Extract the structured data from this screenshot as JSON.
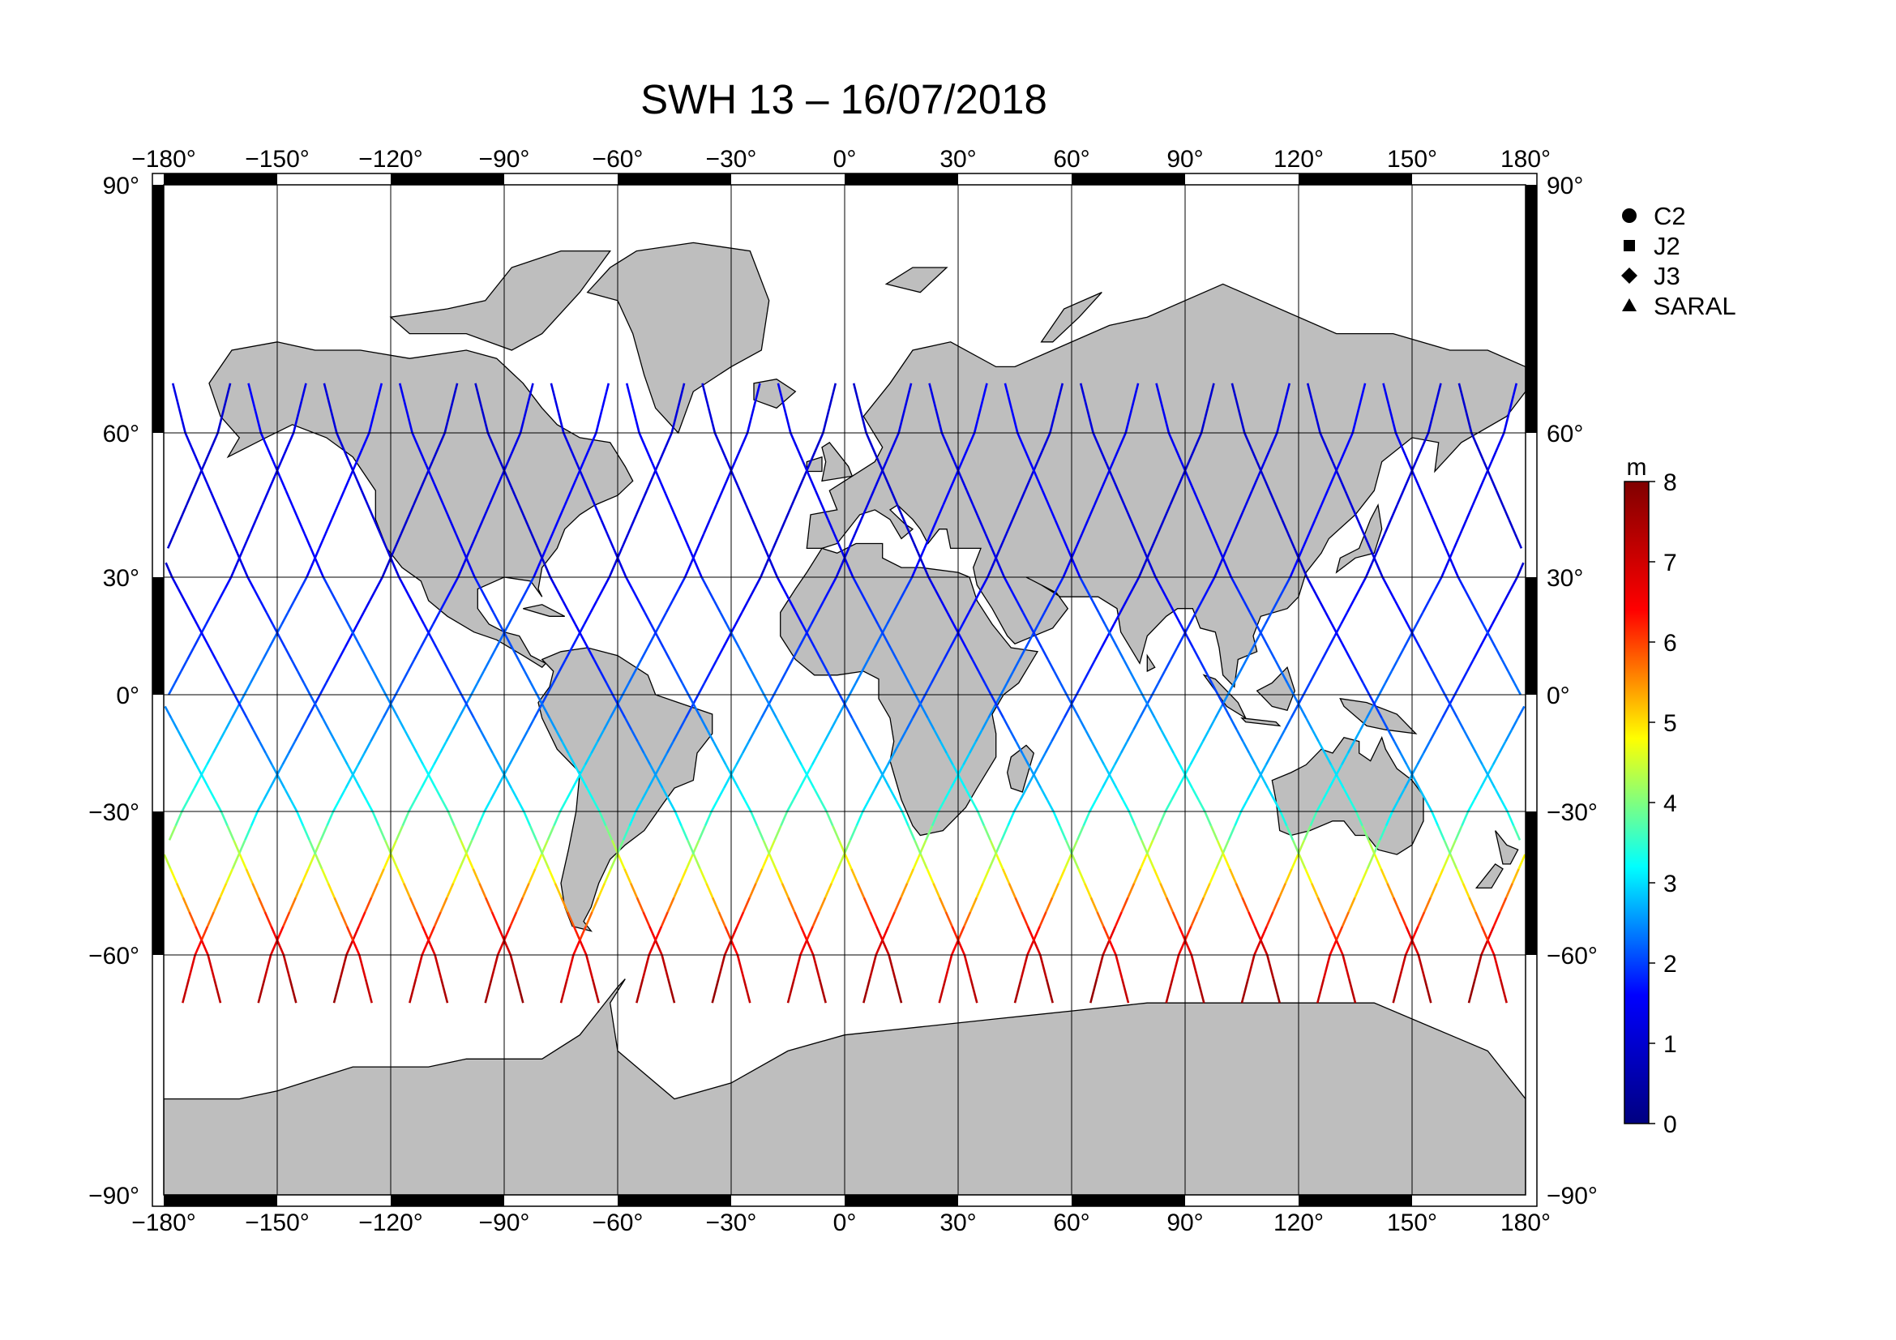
{
  "title": "SWH 13 – 16/07/2018",
  "map": {
    "lon_range": [
      -180,
      180
    ],
    "lat_range": [
      -90,
      90
    ],
    "lon_ticks": [
      -180,
      -150,
      -120,
      -90,
      -60,
      -30,
      0,
      30,
      60,
      90,
      120,
      150,
      180
    ],
    "lat_ticks": [
      90,
      60,
      30,
      0,
      -30,
      -60,
      -90
    ],
    "lon_labels": [
      "−180°",
      "−150°",
      "−120°",
      "−90°",
      "−60°",
      "−30°",
      "0°",
      "30°",
      "60°",
      "90°",
      "120°",
      "150°",
      "180°"
    ],
    "lat_labels": [
      "90°",
      "60°",
      "30°",
      "0°",
      "−30°",
      "−60°",
      "−90°"
    ],
    "land_color": "#bebebe",
    "coast_color": "#000000",
    "ocean_color": "#ffffff",
    "grid": true
  },
  "legend": {
    "placement": "top-right",
    "items": [
      {
        "label": "C2",
        "marker": "circle"
      },
      {
        "label": "J2",
        "marker": "square"
      },
      {
        "label": "J3",
        "marker": "diamond"
      },
      {
        "label": "SARAL",
        "marker": "triangle"
      }
    ]
  },
  "colorbar": {
    "unit": "m",
    "min": 0,
    "max": 8,
    "tick_labels": [
      "0",
      "1",
      "2",
      "3",
      "4",
      "5",
      "6",
      "7",
      "8"
    ],
    "colormap": [
      "#000080",
      "#0000ff",
      "#00ffff",
      "#ffff00",
      "#ff0000",
      "#800000"
    ]
  },
  "chart_data": {
    "type": "scatter",
    "title": "SWH 13 – 16/07/2018",
    "xlabel": "",
    "ylabel": "",
    "xlim": [
      -180,
      180
    ],
    "ylim": [
      -90,
      90
    ],
    "value_unit": "m",
    "value_range": [
      0,
      8
    ],
    "tracks_description_values": {
      "ascending_start_lons": [
        -175,
        -155,
        -135,
        -115,
        -95,
        -75,
        -55,
        -35,
        -15,
        5,
        25,
        45,
        65,
        85,
        105,
        125,
        145,
        165
      ],
      "descending_start_lons": [
        -165,
        -145,
        -125,
        -105,
        -85,
        -65,
        -45,
        -25,
        -5,
        15,
        35,
        55,
        75,
        95,
        115,
        135,
        155,
        175
      ]
    }
  }
}
